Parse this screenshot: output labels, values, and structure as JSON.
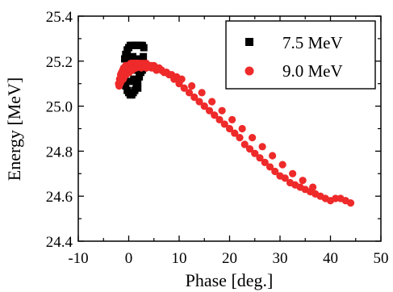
{
  "chart_data": {
    "type": "scatter",
    "title": "",
    "xlabel": "Phase [deg.]",
    "ylabel": "Energy [MeV]",
    "xlim": [
      -10,
      50
    ],
    "ylim": [
      24.4,
      25.4
    ],
    "xticks": [
      -10,
      0,
      10,
      20,
      30,
      40,
      50
    ],
    "yticks": [
      24.4,
      24.6,
      24.8,
      25.0,
      25.2,
      25.4
    ],
    "xtick_labels": [
      "-10",
      "0",
      "10",
      "20",
      "30",
      "40",
      "50"
    ],
    "ytick_labels": [
      "24.4",
      "24.6",
      "24.8",
      "25.0",
      "25.2",
      "25.4"
    ],
    "grid": false,
    "legend_position": "top-right",
    "series": [
      {
        "name": "7.5 MeV",
        "marker": "square",
        "color": "#000000",
        "x": [
          -0.8,
          -0.8,
          -0.6,
          -0.6,
          -0.3,
          -0.3,
          0.0,
          0.0,
          0.3,
          0.3,
          0.6,
          0.6,
          0.9,
          0.9,
          1.2,
          1.2,
          1.5,
          1.5,
          1.8,
          1.8,
          2.1,
          2.1,
          2.4,
          2.4,
          2.7,
          2.7,
          3.0,
          3.0,
          3.3,
          -0.5,
          0.5,
          1.5,
          2.5,
          0.2,
          1.0,
          2.0,
          2.9,
          1.8,
          0.8,
          -0.2
        ],
        "y": [
          25.12,
          25.21,
          25.09,
          25.23,
          25.07,
          25.25,
          25.06,
          25.26,
          25.05,
          25.27,
          25.05,
          25.27,
          25.06,
          25.27,
          25.07,
          25.27,
          25.09,
          25.27,
          25.11,
          25.27,
          25.13,
          25.27,
          25.15,
          25.27,
          25.16,
          25.27,
          25.17,
          25.26,
          25.18,
          25.16,
          25.16,
          25.16,
          25.18,
          25.11,
          25.12,
          25.21,
          25.22,
          25.08,
          25.22,
          25.2
        ]
      },
      {
        "name": "9.0 MeV",
        "marker": "circle",
        "color": "#ee2a2a",
        "x": [
          -2.0,
          -1.8,
          -1.6,
          -1.4,
          -1.2,
          -1.0,
          -0.8,
          -0.6,
          -0.4,
          -0.2,
          -1.9,
          -1.7,
          -1.5,
          -1.3,
          -1.1,
          -0.9,
          -0.7,
          -0.5,
          -0.3,
          -0.1,
          0.0,
          0.2,
          0.4,
          0.6,
          0.8,
          1.0,
          1.2,
          1.4,
          1.6,
          1.8,
          0.1,
          0.3,
          0.5,
          0.7,
          0.9,
          1.1,
          1.3,
          1.5,
          1.7,
          1.9,
          2.0,
          2.5,
          3.0,
          3.5,
          4.0,
          4.5,
          5.0,
          5.5,
          6.0,
          6.5,
          7.0,
          7.5,
          8.0,
          9.0,
          10.0,
          11.0,
          12.0,
          13.0,
          14.0,
          15.0,
          16.0,
          17.0,
          18.0,
          19.0,
          20.0,
          21.0,
          22.0,
          23.0,
          24.0,
          25.0,
          26.0,
          27.0,
          28.0,
          29.0,
          30.0,
          31.0,
          32.0,
          33.0,
          34.0,
          35.0,
          36.0,
          37.0,
          38.0,
          39.0,
          40.0,
          41.0,
          42.0,
          43.0,
          44.0,
          2.5,
          3.5,
          4.5,
          5.5,
          6.5,
          7.5,
          8.5,
          9.5,
          10.5,
          12.5,
          14.5,
          16.5,
          18.5,
          20.5,
          22.5,
          24.5,
          26.5,
          28.5,
          30.5,
          32.5,
          34.5,
          36.5
        ],
        "y": [
          25.1,
          25.12,
          25.14,
          25.15,
          25.16,
          25.17,
          25.17,
          25.18,
          25.18,
          25.18,
          25.09,
          25.1,
          25.11,
          25.12,
          25.12,
          25.13,
          25.14,
          25.14,
          25.15,
          25.15,
          25.18,
          25.18,
          25.19,
          25.19,
          25.19,
          25.19,
          25.19,
          25.19,
          25.19,
          25.19,
          25.15,
          25.16,
          25.16,
          25.16,
          25.17,
          25.17,
          25.17,
          25.17,
          25.18,
          25.18,
          25.19,
          25.19,
          25.19,
          25.19,
          25.18,
          25.18,
          25.18,
          25.17,
          25.17,
          25.16,
          25.15,
          25.15,
          25.14,
          25.12,
          25.1,
          25.08,
          25.06,
          25.04,
          25.02,
          25.0,
          24.98,
          24.96,
          24.94,
          24.92,
          24.9,
          24.88,
          24.86,
          24.83,
          24.81,
          24.79,
          24.77,
          24.75,
          24.73,
          24.71,
          24.69,
          24.68,
          24.66,
          24.65,
          24.64,
          24.63,
          24.62,
          24.61,
          24.6,
          24.59,
          24.58,
          24.59,
          24.59,
          24.58,
          24.57,
          25.17,
          25.17,
          25.17,
          25.16,
          25.16,
          25.15,
          25.14,
          25.13,
          25.12,
          25.09,
          25.06,
          25.02,
          24.98,
          24.94,
          24.9,
          24.86,
          24.82,
          24.78,
          24.74,
          24.7,
          24.67,
          24.64
        ]
      }
    ]
  }
}
